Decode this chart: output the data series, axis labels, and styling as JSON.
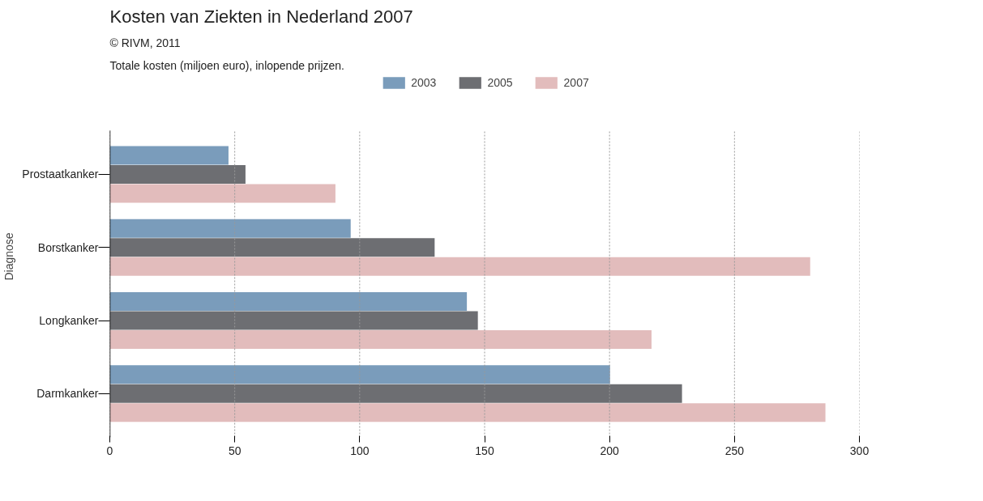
{
  "chart_data": {
    "type": "bar",
    "orientation": "horizontal",
    "title": "Kosten van Ziekten in Nederland 2007",
    "subtitle": "Totale kosten (miljoen euro), inlopende prijzen.",
    "annotations": [
      "© RIVM, 2011"
    ],
    "ylabel": "Diagnose",
    "categories": [
      "Prostaatkanker",
      "Borstkanker",
      "Longkanker",
      "Darmkanker"
    ],
    "series": [
      {
        "name": "2003",
        "color": "#7a9cbb",
        "values": [
          47.5,
          96.4,
          142.9,
          200.2
        ]
      },
      {
        "name": "2005",
        "color": "#6d6e72",
        "values": [
          54.3,
          130,
          147.3,
          229
        ]
      },
      {
        "name": "2007",
        "color": "#e2bcbc",
        "values": [
          90.3,
          280.3,
          216.8,
          286.4
        ]
      }
    ],
    "xlim": [
      0,
      300
    ],
    "xticks": [
      0,
      50,
      100,
      150,
      200,
      250,
      300
    ],
    "grid": "x",
    "legend": "top"
  }
}
